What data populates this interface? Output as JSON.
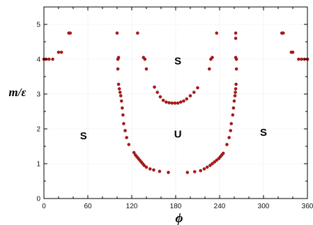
{
  "chart_data": {
    "type": "scatter",
    "xlabel": "ϕ",
    "ylabel": "m/ε",
    "xlim": [
      0,
      360
    ],
    "ylim": [
      0,
      5.5
    ],
    "xticks": [
      0,
      60,
      120,
      180,
      240,
      300,
      360
    ],
    "xtick_labels": [
      "0",
      "60",
      "120",
      "180",
      "240",
      "300",
      "360"
    ],
    "yticks": [
      0,
      1,
      2,
      3,
      4,
      5
    ],
    "ytick_labels": [
      "0",
      "1",
      "2",
      "3",
      "4",
      "5"
    ],
    "grid": true,
    "point_color": "#b01818",
    "region_labels": [
      {
        "text": "S",
        "x": 54,
        "y": 1.8
      },
      {
        "text": "S",
        "x": 183,
        "y": 3.95
      },
      {
        "text": "U",
        "x": 183,
        "y": 1.85
      },
      {
        "text": "S",
        "x": 300,
        "y": 1.9
      }
    ],
    "series": [
      {
        "points": [
          [
            0,
            4.0
          ],
          [
            3,
            4.0
          ],
          [
            7,
            4.0
          ],
          [
            12,
            4.0
          ],
          [
            20,
            4.2
          ],
          [
            24,
            4.2
          ],
          [
            34,
            4.75
          ],
          [
            36,
            4.75
          ],
          [
            100,
            4.75
          ],
          [
            128,
            4.75
          ],
          [
            101,
            4.0
          ],
          [
            102,
            4.05
          ],
          [
            136,
            4.05
          ],
          [
            138,
            4.0
          ],
          [
            140,
            3.72
          ],
          [
            101,
            3.72
          ],
          [
            102,
            3.28
          ],
          [
            103,
            3.15
          ],
          [
            104,
            3.05
          ],
          [
            105,
            2.95
          ],
          [
            106,
            2.8
          ],
          [
            107,
            2.6
          ],
          [
            108,
            2.4
          ],
          [
            109,
            2.15
          ],
          [
            111,
            1.95
          ],
          [
            113,
            1.75
          ],
          [
            116,
            1.55
          ],
          [
            123,
            1.32
          ],
          [
            125,
            1.25
          ],
          [
            127,
            1.2
          ],
          [
            129,
            1.15
          ],
          [
            131,
            1.1
          ],
          [
            133,
            1.05
          ],
          [
            135,
            1.0
          ],
          [
            137,
            0.95
          ],
          [
            140,
            0.9
          ],
          [
            145,
            0.85
          ],
          [
            150,
            0.82
          ],
          [
            158,
            0.78
          ],
          [
            170,
            0.75
          ],
          [
            196,
            0.75
          ],
          [
            206,
            0.77
          ],
          [
            214,
            0.8
          ],
          [
            219,
            0.85
          ],
          [
            223,
            0.9
          ],
          [
            227,
            0.95
          ],
          [
            230,
            1.0
          ],
          [
            233,
            1.05
          ],
          [
            236,
            1.1
          ],
          [
            239,
            1.15
          ],
          [
            241,
            1.2
          ],
          [
            243,
            1.25
          ],
          [
            245,
            1.3
          ],
          [
            250,
            1.55
          ],
          [
            253,
            1.75
          ],
          [
            255,
            1.95
          ],
          [
            256,
            2.15
          ],
          [
            258,
            2.4
          ],
          [
            259,
            2.6
          ],
          [
            260,
            2.8
          ],
          [
            261,
            2.95
          ],
          [
            261.5,
            3.05
          ],
          [
            262,
            3.15
          ],
          [
            262.5,
            3.28
          ],
          [
            263,
            3.72
          ],
          [
            263,
            4.0
          ],
          [
            262,
            4.05
          ],
          [
            262,
            4.6
          ],
          [
            262,
            4.75
          ],
          [
            226,
            3.72
          ],
          [
            228,
            4.0
          ],
          [
            230,
            4.05
          ],
          [
            236,
            4.75
          ],
          [
            151,
            3.2
          ],
          [
            155,
            3.05
          ],
          [
            159,
            2.92
          ],
          [
            163,
            2.82
          ],
          [
            167,
            2.77
          ],
          [
            171,
            2.75
          ],
          [
            175,
            2.74
          ],
          [
            179,
            2.74
          ],
          [
            183,
            2.74
          ],
          [
            187,
            2.77
          ],
          [
            191,
            2.8
          ],
          [
            195,
            2.86
          ],
          [
            200,
            2.95
          ],
          [
            205,
            3.05
          ],
          [
            210,
            3.18
          ],
          [
            325,
            4.75
          ],
          [
            327,
            4.75
          ],
          [
            338,
            4.2
          ],
          [
            340,
            4.2
          ],
          [
            348,
            4.0
          ],
          [
            352,
            4.0
          ],
          [
            356,
            4.0
          ],
          [
            360,
            4.0
          ]
        ]
      }
    ]
  }
}
